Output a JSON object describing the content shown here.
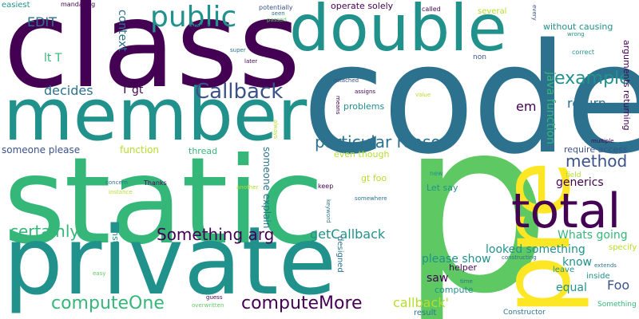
{
  "palette": {
    "dark_purple": "#440154",
    "indigo": "#3b528b",
    "teal_blue": "#2c728e",
    "teal": "#21918c",
    "green": "#35b779",
    "light_green": "#5ec962",
    "yellow_green": "#b5de2b",
    "yellow": "#fde725"
  },
  "words": {
    "code": "code",
    "pre": "pre",
    "p": "p",
    "static": "static",
    "private": "private",
    "class": "class",
    "member": "member",
    "double": "double",
    "total": "total",
    "public": "public",
    "example": "example",
    "callback": "Callback",
    "computemore": "computeMore",
    "computeone": "computeOne",
    "something_arg": "Something arg",
    "particular_reason": "particular reason",
    "method": "method",
    "certainly": "certainly",
    "getcallback": "getCallback",
    "decides": "decides",
    "context": "context",
    "return": "return",
    "em": "em",
    "java_function": "java function",
    "arguments_returning": "arguments returning",
    "edit": "EDIT",
    "lt_t": "lt T",
    "t_gt": "T gt",
    "easiest": "easiest",
    "mandating": "mandating",
    "potentially": "potentially",
    "seen": "seen",
    "passed": "passed",
    "operate_solely": "operate solely",
    "called": "called",
    "several": "several",
    "every": "every",
    "without_causing": "without causing",
    "wrong": "wrong",
    "correct": "correct",
    "intention": "intention",
    "super": "super",
    "later": "later",
    "non": "non",
    "attached": "attached",
    "means": "means",
    "assigns": "assigns",
    "value": "value",
    "problems": "problems",
    "always": "always",
    "function": "function",
    "thread": "thread",
    "even_though": "even though",
    "require_access": "require access",
    "multiple": "multiple",
    "someone_please": "someone please",
    "someone_explain": "someone explain",
    "gt_foo": "gt foo",
    "field": "field",
    "generics": "generics",
    "new": "new",
    "lets_say": "Let say",
    "concern": "concern",
    "instance": "instance",
    "thanks": "Thanks",
    "another": "another",
    "keep": "keep",
    "reuse": "reuse",
    "somewhere": "somewhere",
    "keyword": "keyword",
    "whats_going": "Whats going",
    "specify": "specify",
    "looked_something": "looked something",
    "know": "know",
    "constructing": "constructing",
    "leave": "leave",
    "inside": "inside",
    "extends": "extends",
    "please_show": "please show",
    "saw": "saw",
    "helper": "helper",
    "equal": "equal",
    "foo": "Foo",
    "safe": "safe",
    "compute": "compute",
    "time": "time",
    "callback_quote": "callback'",
    "result": "result",
    "constructor": "Constructor",
    "something": "Something",
    "easy": "easy",
    "instantiated": "instantiated",
    "guess": "guess",
    "overwritten": "overwritten",
    "designed": "designed"
  }
}
